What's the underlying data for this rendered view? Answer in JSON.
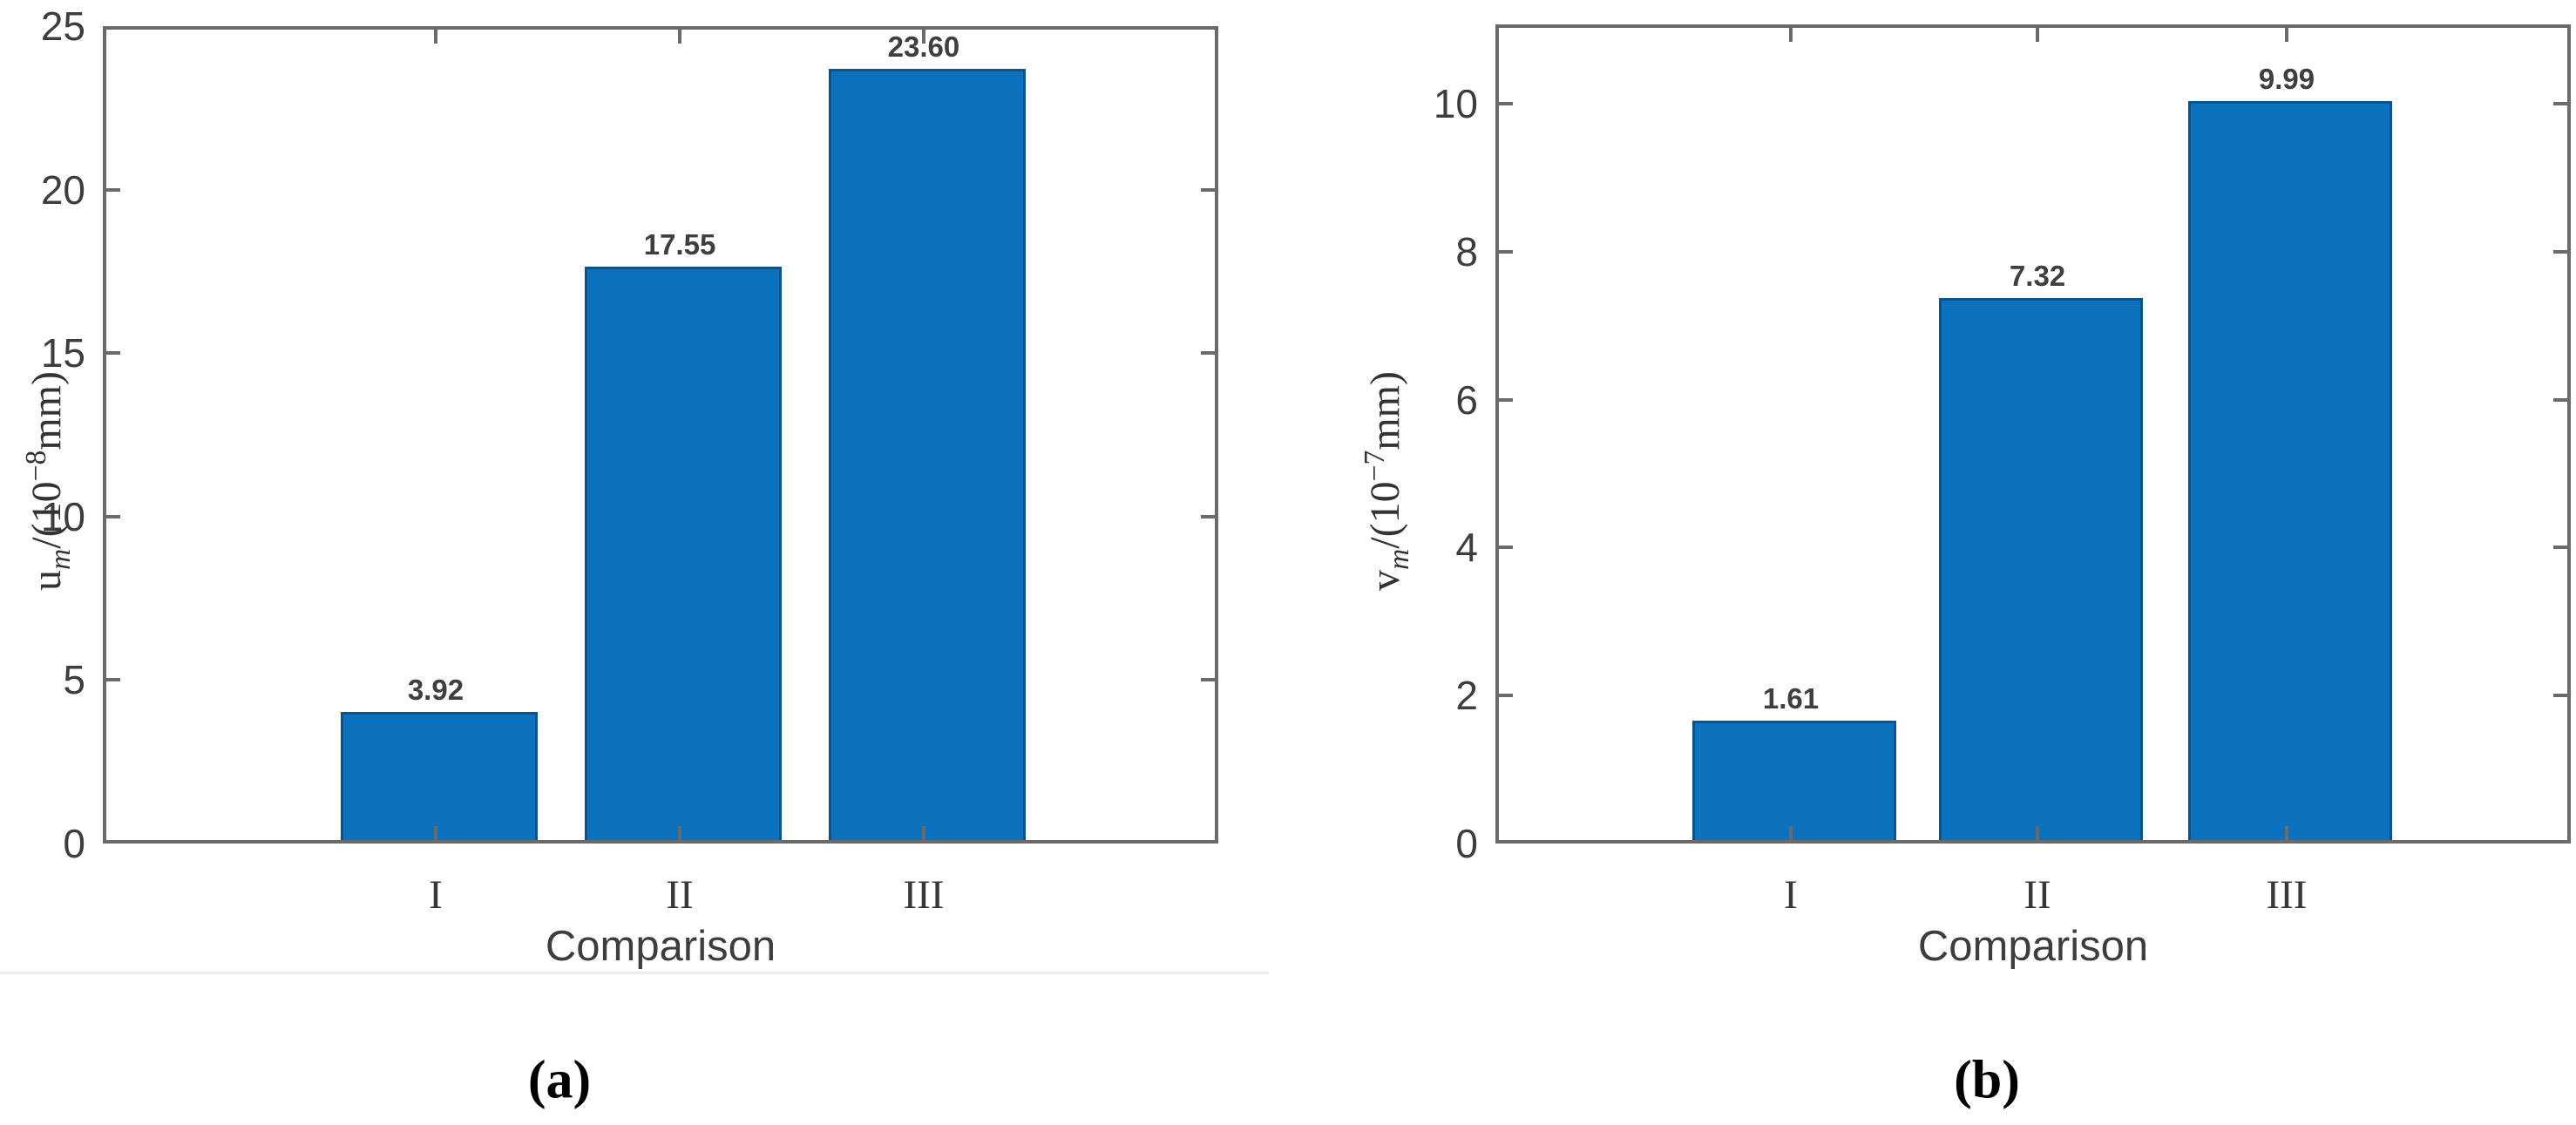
{
  "figure": {
    "captions": {
      "a": "(a)",
      "b": "(b)"
    },
    "accent_color": "#0c72bd",
    "axis_color": "#6a6a6a"
  },
  "chart_data": [
    {
      "type": "bar",
      "panel_caption": "(a)",
      "title": "",
      "categories": [
        "I",
        "II",
        "III"
      ],
      "values": [
        3.92,
        17.55,
        23.6
      ],
      "bar_labels": [
        "3.92",
        "17.55",
        "23.60"
      ],
      "xlabel": "Comparison",
      "ylabel_text": "u_m/(10^-8 mm)",
      "ylabel_parts": {
        "variable": "u",
        "subscript": "m",
        "middle": "/(10",
        "exponent": "−8",
        "suffix": "mm)"
      },
      "yticks": [
        0,
        5,
        10,
        15,
        20,
        25
      ],
      "ytick_labels": [
        "0",
        "5",
        "10",
        "15",
        "20",
        "25"
      ],
      "ylim": [
        0,
        25
      ],
      "bar_color": "#0c72bd",
      "grid": false,
      "legend": null
    },
    {
      "type": "bar",
      "panel_caption": "(b)",
      "title": "",
      "categories": [
        "I",
        "II",
        "III"
      ],
      "values": [
        1.61,
        7.32,
        9.99
      ],
      "bar_labels": [
        "1.61",
        "7.32",
        "9.99"
      ],
      "xlabel": "Comparison",
      "ylabel_text": "v_m/(10^-7 mm)",
      "ylabel_parts": {
        "variable": "v",
        "subscript": "m",
        "middle": "/(10",
        "exponent": "−7",
        "suffix": "mm)"
      },
      "yticks": [
        0,
        2,
        4,
        6,
        8,
        10
      ],
      "ytick_labels": [
        "0",
        "2",
        "4",
        "6",
        "8",
        "10"
      ],
      "ylim": [
        0,
        11.07
      ],
      "bar_color": "#0c72bd",
      "grid": false,
      "legend": null
    }
  ]
}
